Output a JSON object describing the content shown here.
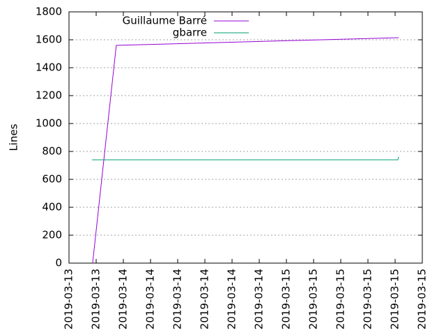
{
  "chart_data": {
    "type": "line",
    "y_label": "Lines",
    "xlim": [
      0,
      13
    ],
    "xticks": [
      {
        "value": 0,
        "label": "2019-03-13"
      },
      {
        "value": 1,
        "label": "2019-03-13"
      },
      {
        "value": 2,
        "label": "2019-03-14"
      },
      {
        "value": 3,
        "label": "2019-03-14"
      },
      {
        "value": 4,
        "label": "2019-03-14"
      },
      {
        "value": 5,
        "label": "2019-03-14"
      },
      {
        "value": 6,
        "label": "2019-03-14"
      },
      {
        "value": 7,
        "label": "2019-03-14"
      },
      {
        "value": 8,
        "label": "2019-03-15"
      },
      {
        "value": 9,
        "label": "2019-03-15"
      },
      {
        "value": 10,
        "label": "2019-03-15"
      },
      {
        "value": 11,
        "label": "2019-03-15"
      },
      {
        "value": 12,
        "label": "2019-03-15"
      },
      {
        "value": 13,
        "label": "2019-03-15"
      }
    ],
    "ylim": [
      0,
      1800
    ],
    "yticks": [
      0,
      200,
      400,
      600,
      800,
      1000,
      1200,
      1400,
      1600,
      1800
    ],
    "grid": true,
    "series": [
      {
        "name": "Guillaume Barré",
        "color": "#9400d3",
        "x": [
          0.87,
          1.74,
          12.13
        ],
        "values": [
          0,
          1560,
          1615
        ]
      },
      {
        "name": "gbarre",
        "color": "#009e73",
        "x": [
          0.85,
          12.1,
          12.13
        ],
        "values": [
          740,
          740,
          762
        ]
      }
    ]
  }
}
